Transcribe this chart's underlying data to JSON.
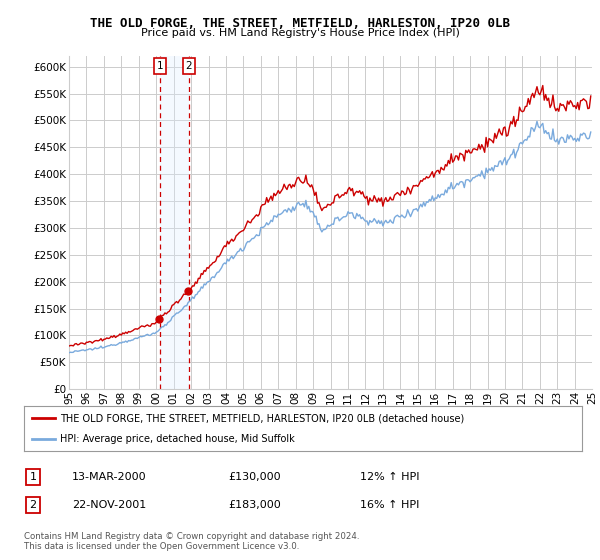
{
  "title": "THE OLD FORGE, THE STREET, METFIELD, HARLESTON, IP20 0LB",
  "subtitle": "Price paid vs. HM Land Registry's House Price Index (HPI)",
  "legend_line1": "THE OLD FORGE, THE STREET, METFIELD, HARLESTON, IP20 0LB (detached house)",
  "legend_line2": "HPI: Average price, detached house, Mid Suffolk",
  "transaction1_date": "13-MAR-2000",
  "transaction1_price": "£130,000",
  "transaction1_hpi": "12% ↑ HPI",
  "transaction2_date": "22-NOV-2001",
  "transaction2_price": "£183,000",
  "transaction2_hpi": "16% ↑ HPI",
  "footer": "Contains HM Land Registry data © Crown copyright and database right 2024.\nThis data is licensed under the Open Government Licence v3.0.",
  "hpi_color": "#7aaadd",
  "price_color": "#cc0000",
  "shade_color": "#ddeeff",
  "vline_color": "#cc0000",
  "background_color": "#ffffff",
  "grid_color": "#cccccc",
  "ylim": [
    0,
    620000
  ],
  "yticks": [
    0,
    50000,
    100000,
    150000,
    200000,
    250000,
    300000,
    350000,
    400000,
    450000,
    500000,
    550000,
    600000
  ],
  "x_start_year": 1995,
  "x_end_year": 2025,
  "t1_year": 2000.208,
  "t2_year": 2001.875
}
